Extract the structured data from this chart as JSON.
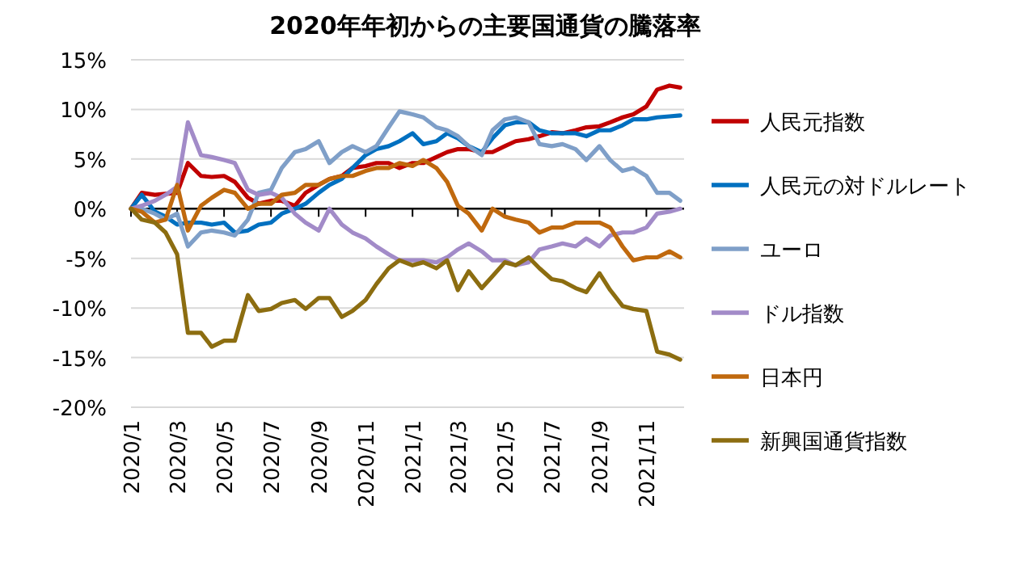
{
  "chart_data": {
    "type": "line",
    "title": "2020年年初からの主要国通貨の騰落率",
    "x": [
      "2020-01-01",
      "2020-01-15",
      "2020-02-01",
      "2020-02-15",
      "2020-03-01",
      "2020-03-15",
      "2020-04-01",
      "2020-04-15",
      "2020-05-01",
      "2020-05-15",
      "2020-06-01",
      "2020-06-15",
      "2020-07-01",
      "2020-07-15",
      "2020-08-01",
      "2020-08-15",
      "2020-09-01",
      "2020-09-15",
      "2020-10-01",
      "2020-10-15",
      "2020-11-01",
      "2020-11-15",
      "2020-12-01",
      "2020-12-15",
      "2021-01-01",
      "2021-01-15",
      "2021-02-01",
      "2021-02-15",
      "2021-03-01",
      "2021-03-15",
      "2021-04-01",
      "2021-04-15",
      "2021-05-01",
      "2021-05-15",
      "2021-06-01",
      "2021-06-15",
      "2021-07-01",
      "2021-07-15",
      "2021-08-01",
      "2021-08-15",
      "2021-09-01",
      "2021-09-15",
      "2021-10-01",
      "2021-10-15",
      "2021-11-01",
      "2021-11-15",
      "2021-12-01",
      "2021-12-15"
    ],
    "series": [
      {
        "name": "人民元指数",
        "color": "#c00000",
        "values": [
          0,
          1.6,
          1.4,
          1.5,
          1.6,
          4.6,
          3.3,
          3.2,
          3.3,
          2.7,
          1.1,
          0.5,
          0.8,
          0.8,
          0.3,
          1.6,
          2.4,
          3.0,
          3.3,
          4.1,
          4.3,
          4.6,
          4.6,
          4.1,
          4.6,
          4.6,
          5.2,
          5.7,
          6.0,
          6.0,
          5.7,
          5.7,
          6.3,
          6.8,
          7.0,
          7.3,
          7.7,
          7.6,
          7.9,
          8.2,
          8.3,
          8.7,
          9.2,
          9.5,
          10.3,
          12.0,
          12.4,
          12.2
        ]
      },
      {
        "name": "人民元の対ドルレート",
        "color": "#0070c0",
        "values": [
          0,
          1.4,
          -0.3,
          -0.8,
          -1.6,
          -1.4,
          -1.4,
          -1.6,
          -1.4,
          -2.4,
          -2.2,
          -1.6,
          -1.4,
          -0.5,
          0,
          0.5,
          1.6,
          2.4,
          3.0,
          4.1,
          5.4,
          6.0,
          6.3,
          6.8,
          7.6,
          6.5,
          6.8,
          7.6,
          7.1,
          6.3,
          5.7,
          7.1,
          8.4,
          8.7,
          8.7,
          7.9,
          7.6,
          7.6,
          7.6,
          7.3,
          7.9,
          7.9,
          8.4,
          9.0,
          9.0,
          9.2,
          9.3,
          9.4
        ]
      },
      {
        "name": "ユーロ",
        "color": "#7f9fc8",
        "values": [
          0,
          0,
          -0.5,
          -1.1,
          -0.5,
          -3.8,
          -2.4,
          -2.2,
          -2.4,
          -2.7,
          -1.1,
          1.6,
          1.9,
          4.1,
          5.7,
          6.0,
          6.8,
          4.6,
          5.7,
          6.3,
          5.7,
          6.3,
          8.2,
          9.8,
          9.5,
          9.2,
          8.2,
          7.9,
          7.3,
          6.3,
          5.4,
          7.9,
          9.0,
          9.2,
          8.7,
          6.5,
          6.3,
          6.5,
          6.0,
          4.9,
          6.3,
          4.9,
          3.8,
          4.1,
          3.3,
          1.6,
          1.6,
          0.8
        ]
      },
      {
        "name": "ドル指数",
        "color": "#a28bc8",
        "values": [
          0,
          0.3,
          0.8,
          1.4,
          2.2,
          8.7,
          5.4,
          5.2,
          4.9,
          4.6,
          1.9,
          1.4,
          1.6,
          1.1,
          -0.5,
          -1.4,
          -2.2,
          0,
          -1.6,
          -2.4,
          -3.0,
          -3.8,
          -4.6,
          -5.2,
          -5.2,
          -5.2,
          -5.4,
          -4.9,
          -4.1,
          -3.5,
          -4.3,
          -5.2,
          -5.2,
          -5.7,
          -5.4,
          -4.1,
          -3.8,
          -3.5,
          -3.8,
          -3.0,
          -3.8,
          -2.7,
          -2.4,
          -2.4,
          -1.9,
          -0.5,
          -0.3,
          0
        ]
      },
      {
        "name": "日本円",
        "color": "#c0690e",
        "values": [
          0,
          -0.3,
          -1.4,
          -1.1,
          2.4,
          -2.2,
          0.3,
          1.1,
          1.9,
          1.6,
          0,
          0.5,
          0.5,
          1.4,
          1.6,
          2.4,
          2.4,
          3.0,
          3.3,
          3.3,
          3.8,
          4.1,
          4.1,
          4.6,
          4.3,
          4.9,
          4.1,
          2.7,
          0.3,
          -0.5,
          -2.2,
          0,
          -0.8,
          -1.1,
          -1.4,
          -2.4,
          -1.9,
          -1.9,
          -1.4,
          -1.4,
          -1.4,
          -1.9,
          -3.8,
          -5.2,
          -4.9,
          -4.9,
          -4.3,
          -4.9
        ]
      },
      {
        "name": "新興国通貨指数",
        "color": "#8c6d10",
        "values": [
          0,
          -1.1,
          -1.4,
          -2.4,
          -4.6,
          -12.5,
          -12.5,
          -13.9,
          -13.3,
          -13.3,
          -8.7,
          -10.3,
          -10.1,
          -9.5,
          -9.2,
          -10.1,
          -9.0,
          -9.0,
          -10.9,
          -10.3,
          -9.2,
          -7.6,
          -6.0,
          -5.2,
          -5.7,
          -5.4,
          -6.0,
          -5.2,
          -8.2,
          -6.3,
          -8.0,
          -6.8,
          -5.4,
          -5.7,
          -4.9,
          -6.0,
          -7.1,
          -7.3,
          -8.0,
          -8.4,
          -6.5,
          -8.2,
          -9.8,
          -10.1,
          -10.3,
          -14.4,
          -14.7,
          -15.2
        ]
      }
    ],
    "xlim": [
      "2020-01-01",
      "2021-12-20"
    ],
    "xticks": [
      {
        "value": "2020-01-01",
        "label": "2020/1"
      },
      {
        "value": "2020-03-01",
        "label": "2020/3"
      },
      {
        "value": "2020-05-01",
        "label": "2020/5"
      },
      {
        "value": "2020-07-01",
        "label": "2020/7"
      },
      {
        "value": "2020-09-01",
        "label": "2020/9"
      },
      {
        "value": "2020-11-01",
        "label": "2020/11"
      },
      {
        "value": "2021-01-01",
        "label": "2021/1"
      },
      {
        "value": "2021-03-01",
        "label": "2021/3"
      },
      {
        "value": "2021-05-01",
        "label": "2021/5"
      },
      {
        "value": "2021-07-01",
        "label": "2021/7"
      },
      {
        "value": "2021-09-01",
        "label": "2021/9"
      },
      {
        "value": "2021-11-01",
        "label": "2021/11"
      }
    ],
    "ylim": [
      -20,
      15
    ],
    "yticks": [
      {
        "value": -20,
        "label": "-20%"
      },
      {
        "value": -15,
        "label": "-15%"
      },
      {
        "value": -10,
        "label": "-10%"
      },
      {
        "value": -5,
        "label": "-5%"
      },
      {
        "value": 0,
        "label": "0%"
      },
      {
        "value": 5,
        "label": "5%"
      },
      {
        "value": 10,
        "label": "10%"
      },
      {
        "value": 15,
        "label": "15%"
      }
    ],
    "grid": "y",
    "legend": "right",
    "line_style": "solid"
  }
}
